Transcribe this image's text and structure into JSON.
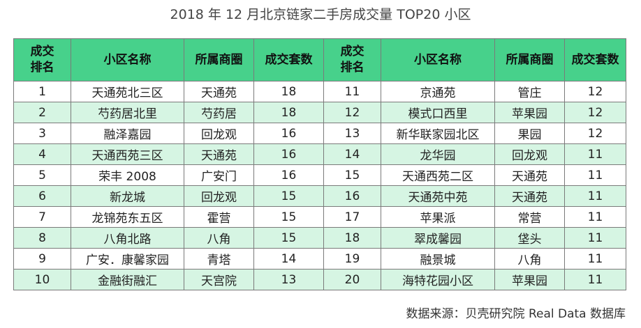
{
  "title": "2018 年 12 月北京链家二手房成交量 TOP20 小区",
  "headers": {
    "rank_line1": "成交",
    "rank_line2": "排名",
    "name": "小区名称",
    "area": "所属商圈",
    "count": "成交套数"
  },
  "rows": [
    {
      "r1": "1",
      "n1": "天通苑北三区",
      "a1": "天通苑",
      "c1": "18",
      "r2": "11",
      "n2": "京通苑",
      "a2": "管庄",
      "c2": "12"
    },
    {
      "r1": "2",
      "n1": "芍药居北里",
      "a1": "芍药居",
      "c1": "18",
      "r2": "12",
      "n2": "模式口西里",
      "a2": "苹果园",
      "c2": "12"
    },
    {
      "r1": "3",
      "n1": "融泽嘉园",
      "a1": "回龙观",
      "c1": "16",
      "r2": "13",
      "n2": "新华联家园北区",
      "a2": "果园",
      "c2": "12"
    },
    {
      "r1": "4",
      "n1": "天通西苑三区",
      "a1": "天通苑",
      "c1": "16",
      "r2": "14",
      "n2": "龙华园",
      "a2": "回龙观",
      "c2": "11"
    },
    {
      "r1": "5",
      "n1": "荣丰 2008",
      "a1": "广安门",
      "c1": "16",
      "r2": "15",
      "n2": "天通西苑二区",
      "a2": "天通苑",
      "c2": "11"
    },
    {
      "r1": "6",
      "n1": "新龙城",
      "a1": "回龙观",
      "c1": "15",
      "r2": "16",
      "n2": "天通苑中苑",
      "a2": "天通苑",
      "c2": "11"
    },
    {
      "r1": "7",
      "n1": "龙锦苑东五区",
      "a1": "霍营",
      "c1": "15",
      "r2": "17",
      "n2": "苹果派",
      "a2": "常营",
      "c2": "11"
    },
    {
      "r1": "8",
      "n1": "八角北路",
      "a1": "八角",
      "c1": "15",
      "r2": "18",
      "n2": "翠成馨园",
      "a2": "垡头",
      "c2": "11"
    },
    {
      "r1": "9",
      "n1": "广安．康馨家园",
      "a1": "青塔",
      "c1": "14",
      "r2": "19",
      "n2": "融景城",
      "a2": "八角",
      "c2": "11"
    },
    {
      "r1": "10",
      "n1": "金融街融汇",
      "a1": "天宫院",
      "c1": "13",
      "r2": "20",
      "n2": "海特花园小区",
      "a2": "苹果园",
      "c2": "11"
    }
  ],
  "source": "数据来源：贝壳研究院 Real Data 数据库"
}
